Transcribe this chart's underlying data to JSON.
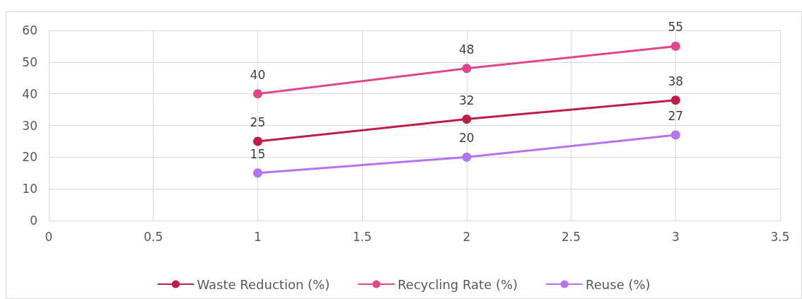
{
  "chart_data": {
    "type": "line",
    "x": [
      1,
      2,
      3
    ],
    "series": [
      {
        "name": "Waste Reduction (%)",
        "color": "#be1e45",
        "values": [
          25,
          32,
          38
        ]
      },
      {
        "name": "Recycling Rate (%)",
        "color": "#e0478b",
        "values": [
          40,
          48,
          55
        ]
      },
      {
        "name": "Reuse (%)",
        "color": "#b673ef",
        "values": [
          15,
          20,
          27
        ]
      }
    ],
    "xlim": [
      0,
      3.5
    ],
    "xticks": [
      0,
      0.5,
      1,
      1.5,
      2,
      2.5,
      3,
      3.5
    ],
    "ylim": [
      0,
      60
    ],
    "yticks": [
      0,
      10,
      20,
      30,
      40,
      50,
      60
    ],
    "grid": true,
    "legend": "bottom",
    "marker": "circle",
    "line_style": "solid",
    "data_labels": true
  }
}
